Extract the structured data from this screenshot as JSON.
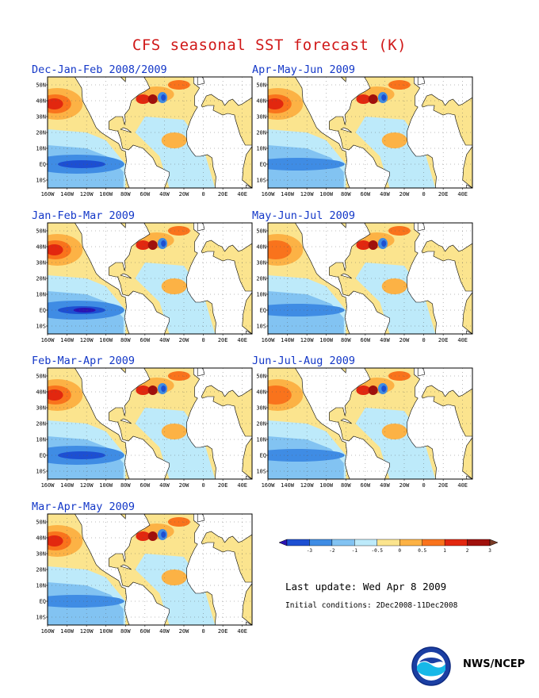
{
  "title": "CFS seasonal SST forecast (K)",
  "map_axes": {
    "lat_labels": [
      "50N",
      "40N",
      "30N",
      "20N",
      "10N",
      "EQ",
      "10S"
    ],
    "lon_labels": [
      "160W",
      "140W",
      "120W",
      "100W",
      "80W",
      "60W",
      "40W",
      "20W",
      "0",
      "20E",
      "40E"
    ]
  },
  "panels": [
    {
      "label": "Dec-Jan-Feb 2008/2009",
      "period": "DJF"
    },
    {
      "label": "Apr-May-Jun 2009",
      "period": "AMJ"
    },
    {
      "label": "Jan-Feb-Mar 2009",
      "period": "JFM"
    },
    {
      "label": "May-Jun-Jul 2009",
      "period": "MJJ"
    },
    {
      "label": "Feb-Mar-Apr 2009",
      "period": "FMA"
    },
    {
      "label": "Jun-Jul-Aug 2009",
      "period": "JJA"
    },
    {
      "label": "Mar-Apr-May 2009",
      "period": "MAM"
    }
  ],
  "colorbar": {
    "tick_labels": [
      "-3",
      "-2",
      "-1",
      "-0.5",
      "0",
      "0.5",
      "1",
      "2",
      "3"
    ],
    "colors": [
      "#2a14b4",
      "#1d4fd2",
      "#3f8ce4",
      "#82c3f2",
      "#bdeafa",
      "#fbe48e",
      "#fcb245",
      "#f9731c",
      "#e2270f",
      "#a0100c",
      "#7a3a26"
    ]
  },
  "last_update": "Last update: Wed Apr 8 2009",
  "initial_conditions": "Initial conditions: 2Dec2008-11Dec2008",
  "credit": "NWS/NCEP",
  "logo_icon": "noaa-logo-icon"
}
